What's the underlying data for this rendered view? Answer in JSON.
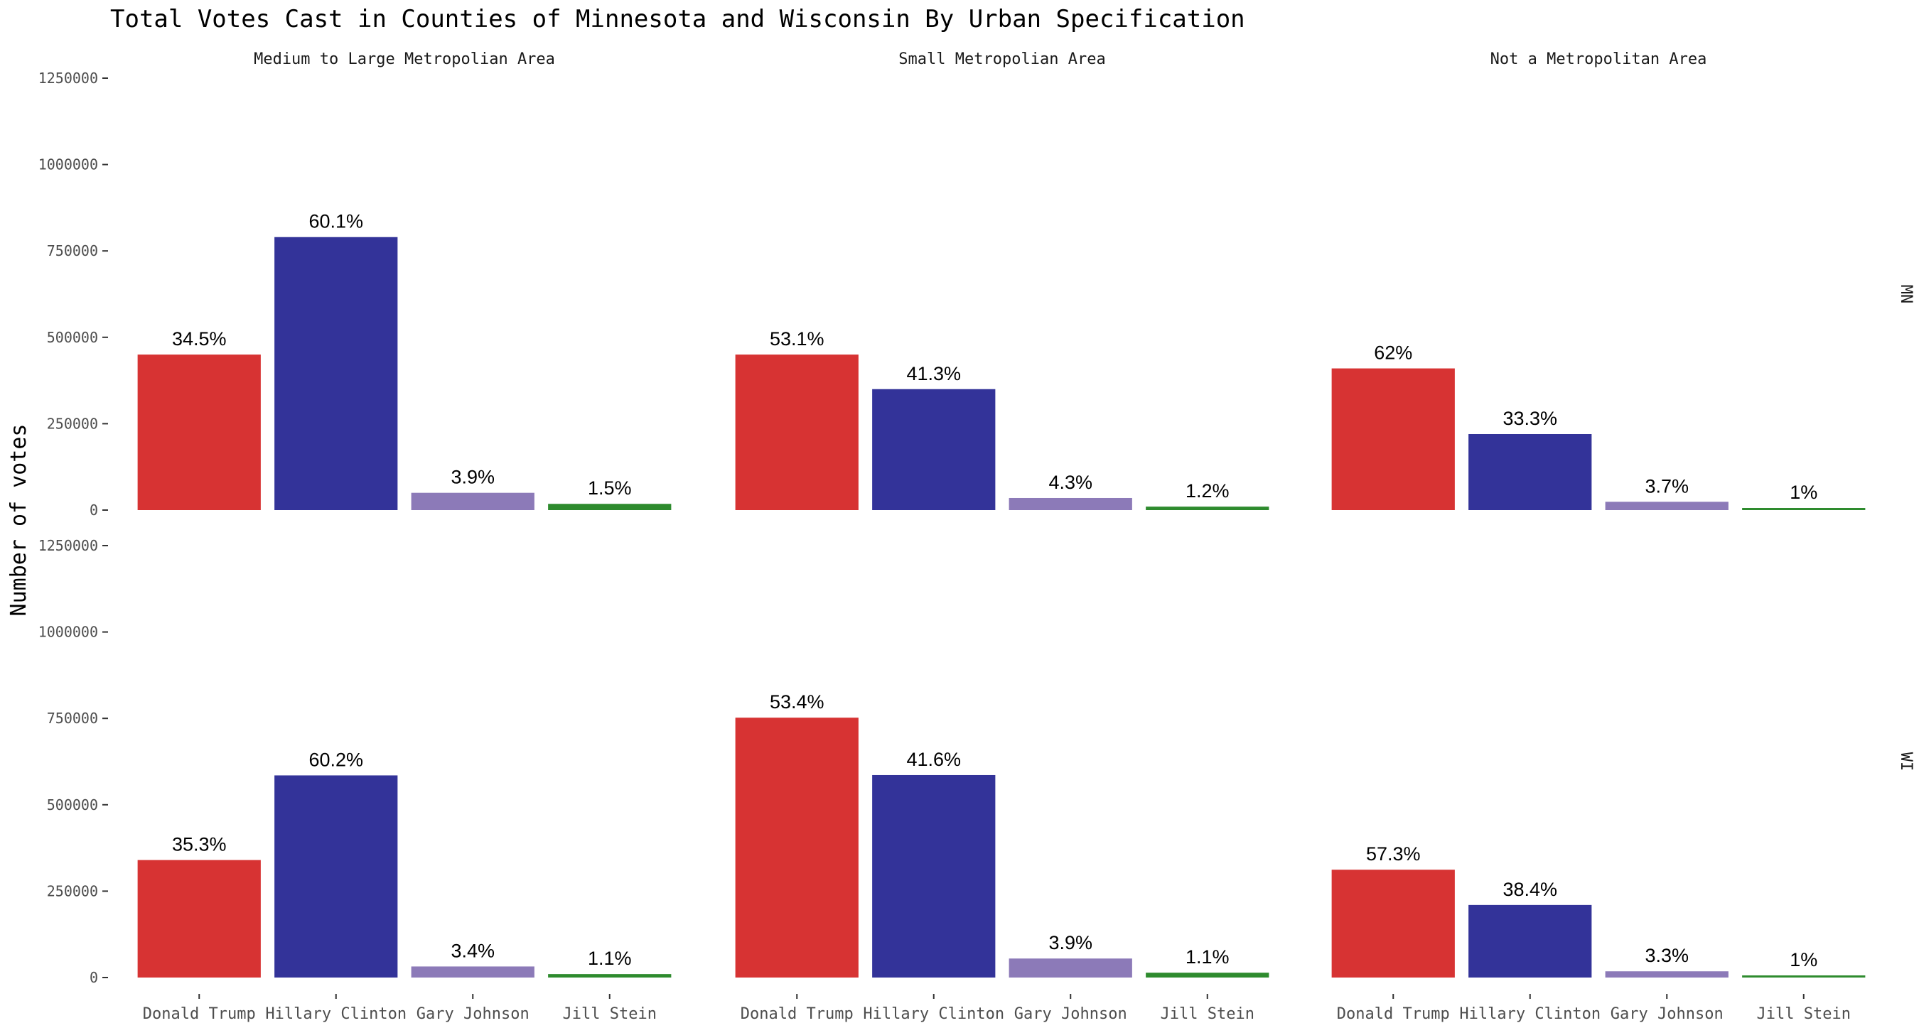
{
  "chart_data": {
    "type": "bar",
    "title": "Total Votes Cast in Counties of Minnesota and Wisconsin By Urban Specification",
    "ylabel": "Number of votes",
    "xlabel": "",
    "ylim": [
      0,
      1250000
    ],
    "y_ticks": [
      0,
      250000,
      500000,
      750000,
      1000000,
      1250000
    ],
    "y_tick_labels": [
      "0",
      "250000",
      "500000",
      "750000",
      "1000000",
      "1250000"
    ],
    "categories": [
      "Donald Trump",
      "Hillary Clinton",
      "Gary Johnson",
      "Jill Stein"
    ],
    "colors": {
      "Donald Trump": "#d73333",
      "Hillary Clinton": "#333399",
      "Gary Johnson": "#8c7ab8",
      "Jill Stein": "#2e8b2e"
    },
    "facet_columns": [
      "Medium to Large Metropolian Area",
      "Small Metropolian Area",
      "Not a Metropolitan Area"
    ],
    "facet_rows": [
      "MN",
      "WI"
    ],
    "panels": [
      {
        "row": "MN",
        "column": "Medium to Large Metropolian Area",
        "values": [
          450000,
          790000,
          50000,
          18000
        ],
        "labels": [
          "34.5%",
          "60.1%",
          "3.9%",
          "1.5%"
        ]
      },
      {
        "row": "MN",
        "column": "Small Metropolian Area",
        "values": [
          450000,
          350000,
          35000,
          10000
        ],
        "labels": [
          "53.1%",
          "41.3%",
          "4.3%",
          "1.2%"
        ]
      },
      {
        "row": "MN",
        "column": "Not a Metropolitan Area",
        "values": [
          410000,
          220000,
          24000,
          6000
        ],
        "labels": [
          "62%",
          "33.3%",
          "3.7%",
          "1%"
        ]
      },
      {
        "row": "WI",
        "column": "Medium to Large Metropolian Area",
        "values": [
          340000,
          585000,
          32000,
          10000
        ],
        "labels": [
          "35.3%",
          "60.2%",
          "3.4%",
          "1.1%"
        ]
      },
      {
        "row": "WI",
        "column": "Small Metropolian Area",
        "values": [
          752000,
          586000,
          55000,
          14000
        ],
        "labels": [
          "53.4%",
          "41.6%",
          "3.9%",
          "1.1%"
        ]
      },
      {
        "row": "WI",
        "column": "Not a Metropolitan Area",
        "values": [
          312000,
          210000,
          18000,
          5000
        ],
        "labels": [
          "57.3%",
          "38.4%",
          "3.3%",
          "1%"
        ]
      }
    ],
    "grid": false,
    "legend": "none"
  }
}
